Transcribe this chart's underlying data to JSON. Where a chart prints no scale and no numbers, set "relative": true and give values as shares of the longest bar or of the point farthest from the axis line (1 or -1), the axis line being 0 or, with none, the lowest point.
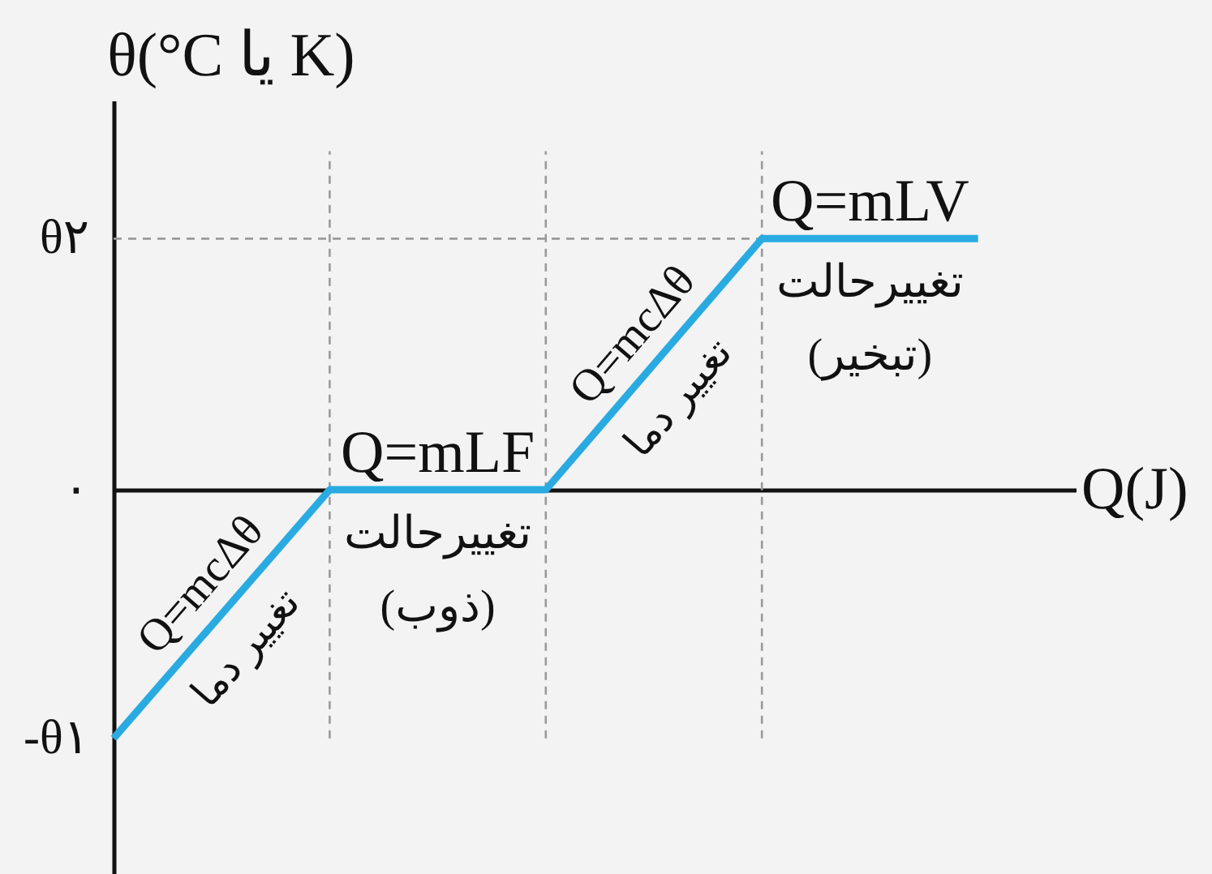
{
  "chart_data": {
    "type": "line",
    "xlabel": "Q(J)",
    "ylabel": "θ(°C یا K)",
    "categories": [
      null,
      null,
      null,
      null,
      null
    ],
    "values": [
      -0.99,
      0,
      0,
      1,
      1
    ],
    "color": "#29abe2",
    "relative": true,
    "grid": "x",
    "ref_lines": [
      {
        "axis": "y",
        "value": 1,
        "color": "#9a9a9a",
        "line_style": "dashed"
      }
    ],
    "annotations": [
      "θ۲",
      "۰",
      "-θ۱",
      "Q=mcΔθ",
      "تغییر دما",
      "Q=mLF",
      "تغییرحالت\n(ذوب)",
      "Q=mcΔθ",
      "تغییر دما",
      "Q=mLV",
      "تغییرحالت\n(تبخیر)"
    ]
  }
}
